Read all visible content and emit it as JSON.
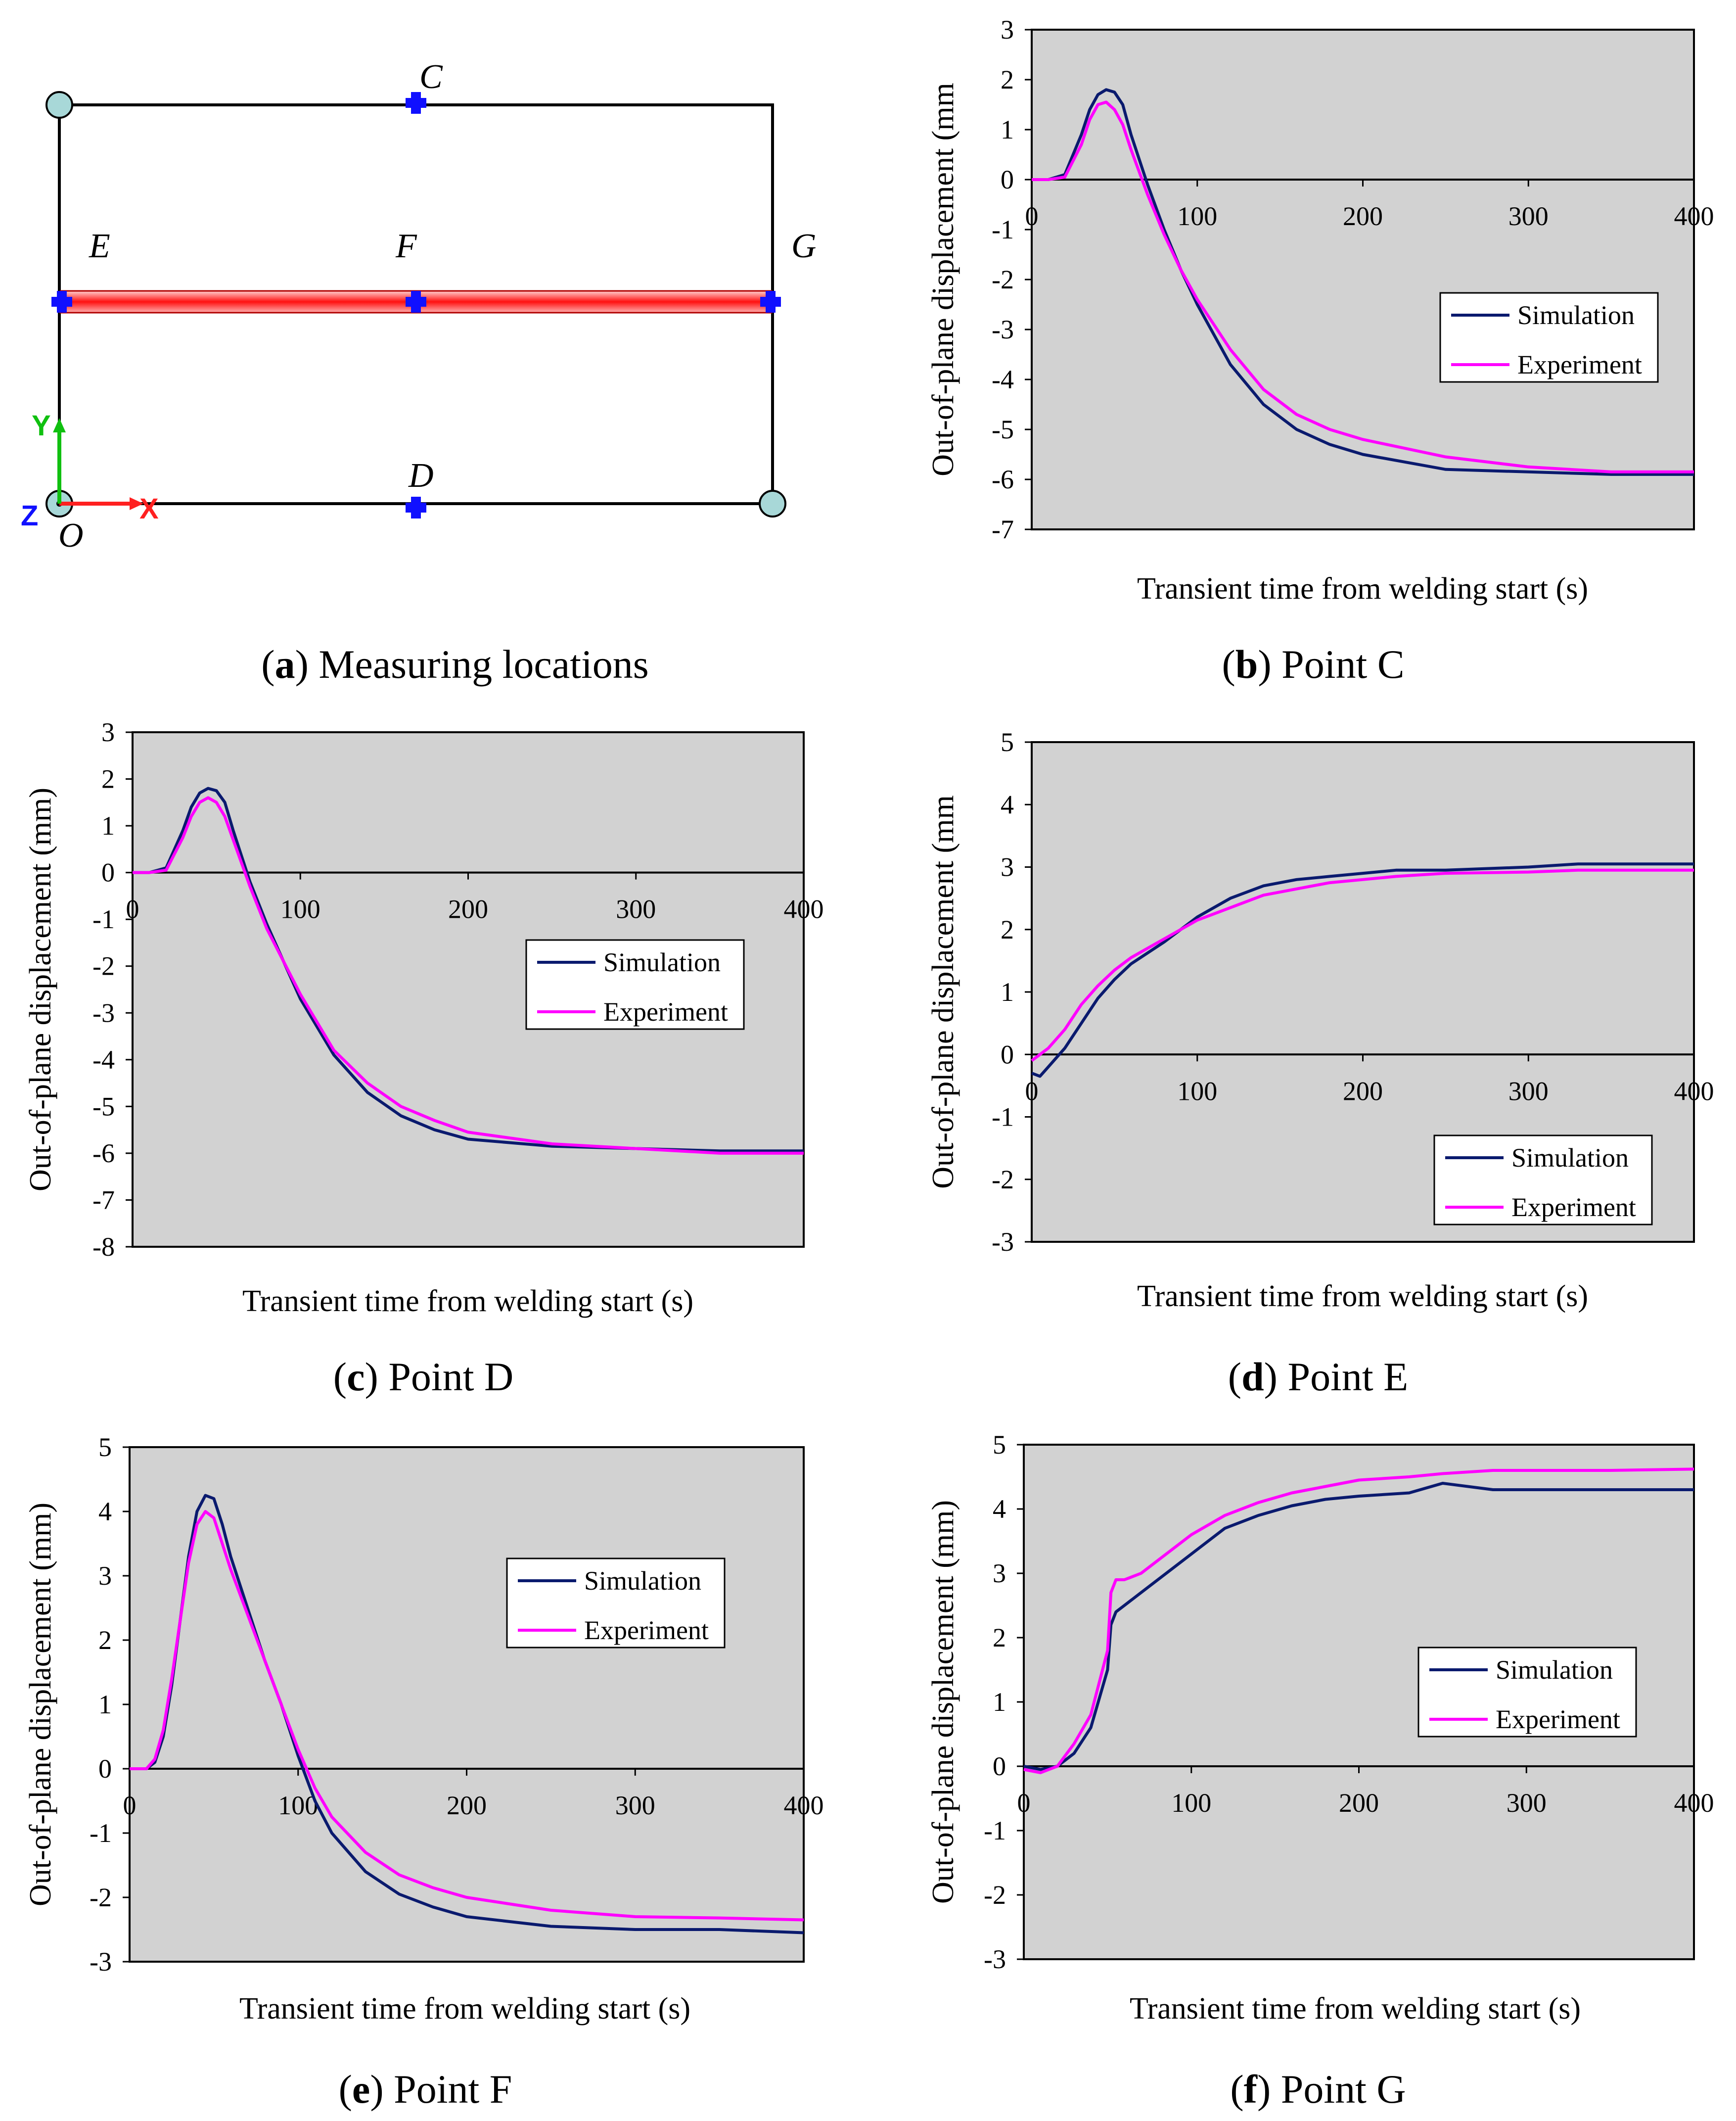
{
  "diagram": {
    "point_labels": {
      "C": "C",
      "D": "D",
      "E": "E",
      "F": "F",
      "G": "G",
      "O": "O"
    },
    "axis_labels": {
      "x": "X",
      "y": "Y",
      "z": "Z"
    },
    "caption": {
      "letter": "a",
      "text": "Measuring locations"
    },
    "colors": {
      "frame": "#000000",
      "weld": "#ff2020",
      "marker": "#1010ff",
      "corner": "#a8d8d8",
      "axis_x": "#ff2020",
      "axis_y": "#10c010",
      "axis_z": "#1010ff"
    }
  },
  "legend_labels": [
    "Simulation",
    "Experiment"
  ],
  "series_colors": {
    "Simulation": "#0a1a6e",
    "Experiment": "#ff00ff"
  },
  "chart_data": [
    {
      "id": "b",
      "type": "line",
      "caption": {
        "letter": "b",
        "text": "Point C"
      },
      "xlabel": "Transient time from welding start (s)",
      "ylabel": "Out-of-plane displacement (mm",
      "xlim": [
        0,
        400
      ],
      "ylim": [
        -7,
        3
      ],
      "xticks": [
        0,
        100,
        200,
        300,
        400
      ],
      "yticks": [
        3,
        2,
        1,
        0,
        -1,
        -2,
        -3,
        -4,
        -5,
        -6,
        -7
      ],
      "series": [
        {
          "name": "Simulation",
          "x": [
            0,
            10,
            20,
            30,
            35,
            40,
            45,
            50,
            55,
            60,
            70,
            80,
            90,
            100,
            120,
            140,
            160,
            180,
            200,
            250,
            300,
            350,
            400
          ],
          "y": [
            0,
            0,
            0.1,
            0.9,
            1.4,
            1.7,
            1.8,
            1.75,
            1.5,
            0.9,
            -0.1,
            -1.0,
            -1.8,
            -2.5,
            -3.7,
            -4.5,
            -5.0,
            -5.3,
            -5.5,
            -5.8,
            -5.85,
            -5.9,
            -5.9
          ]
        },
        {
          "name": "Experiment",
          "x": [
            0,
            10,
            20,
            30,
            35,
            40,
            45,
            50,
            55,
            60,
            70,
            80,
            90,
            100,
            120,
            140,
            160,
            180,
            200,
            250,
            300,
            350,
            400
          ],
          "y": [
            0,
            0,
            0.05,
            0.7,
            1.2,
            1.5,
            1.55,
            1.4,
            1.1,
            0.6,
            -0.3,
            -1.1,
            -1.8,
            -2.4,
            -3.4,
            -4.2,
            -4.7,
            -5.0,
            -5.2,
            -5.55,
            -5.75,
            -5.85,
            -5.85
          ]
        }
      ],
      "legend": "right-middle"
    },
    {
      "id": "c",
      "type": "line",
      "caption": {
        "letter": "c",
        "text": "Point D"
      },
      "xlabel": "Transient time from welding start (s)",
      "ylabel": "Out-of-plane displacement (mm)",
      "xlim": [
        0,
        400
      ],
      "ylim": [
        -8,
        3
      ],
      "xticks": [
        0,
        100,
        200,
        300,
        400
      ],
      "yticks": [
        3,
        2,
        1,
        0,
        -1,
        -2,
        -3,
        -4,
        -5,
        -6,
        -7,
        -8
      ],
      "series": [
        {
          "name": "Simulation",
          "x": [
            0,
            10,
            20,
            30,
            35,
            40,
            45,
            50,
            55,
            60,
            70,
            80,
            90,
            100,
            120,
            140,
            160,
            180,
            200,
            250,
            300,
            350,
            400
          ],
          "y": [
            0,
            0,
            0.1,
            0.9,
            1.4,
            1.7,
            1.8,
            1.75,
            1.5,
            0.9,
            -0.2,
            -1.1,
            -1.9,
            -2.7,
            -3.9,
            -4.7,
            -5.2,
            -5.5,
            -5.7,
            -5.85,
            -5.9,
            -5.95,
            -5.95
          ]
        },
        {
          "name": "Experiment",
          "x": [
            0,
            10,
            20,
            30,
            35,
            40,
            45,
            50,
            55,
            60,
            70,
            80,
            90,
            100,
            120,
            140,
            160,
            180,
            200,
            250,
            300,
            350,
            400
          ],
          "y": [
            0,
            0,
            0.05,
            0.75,
            1.2,
            1.5,
            1.6,
            1.5,
            1.2,
            0.7,
            -0.3,
            -1.2,
            -1.9,
            -2.6,
            -3.8,
            -4.5,
            -5.0,
            -5.3,
            -5.55,
            -5.8,
            -5.9,
            -6.0,
            -6.0
          ]
        }
      ],
      "legend": "right-middle"
    },
    {
      "id": "d",
      "type": "line",
      "caption": {
        "letter": "d",
        "text": "Point E"
      },
      "xlabel": "Transient time from welding start (s)",
      "ylabel": "Out-of-plane displacement (mm",
      "xlim": [
        0,
        400
      ],
      "ylim": [
        -3,
        5
      ],
      "xticks": [
        0,
        100,
        200,
        300,
        400
      ],
      "yticks": [
        5,
        4,
        3,
        2,
        1,
        0,
        -1,
        -2,
        -3
      ],
      "series": [
        {
          "name": "Simulation",
          "x": [
            0,
            5,
            10,
            20,
            30,
            40,
            50,
            60,
            80,
            100,
            120,
            140,
            160,
            180,
            200,
            220,
            250,
            300,
            330,
            400
          ],
          "y": [
            -0.3,
            -0.35,
            -0.2,
            0.1,
            0.5,
            0.9,
            1.2,
            1.45,
            1.8,
            2.2,
            2.5,
            2.7,
            2.8,
            2.85,
            2.9,
            2.95,
            2.95,
            3.0,
            3.05,
            3.05
          ]
        },
        {
          "name": "Experiment",
          "x": [
            0,
            5,
            10,
            20,
            30,
            40,
            50,
            60,
            80,
            100,
            120,
            140,
            160,
            180,
            200,
            220,
            250,
            300,
            330,
            400
          ],
          "y": [
            -0.1,
            0.0,
            0.1,
            0.4,
            0.8,
            1.1,
            1.35,
            1.55,
            1.85,
            2.15,
            2.35,
            2.55,
            2.65,
            2.75,
            2.8,
            2.85,
            2.9,
            2.92,
            2.95,
            2.95
          ]
        }
      ],
      "legend": "bottom-right"
    },
    {
      "id": "e",
      "type": "line",
      "caption": {
        "letter": "e",
        "text": "Point F"
      },
      "xlabel": "Transient time from welding start (s)",
      "ylabel": "Out-of-plane displacement (mm)",
      "xlim": [
        0,
        400
      ],
      "ylim": [
        -3,
        5
      ],
      "xticks": [
        0,
        100,
        200,
        300,
        400
      ],
      "yticks": [
        5,
        4,
        3,
        2,
        1,
        0,
        -1,
        -2,
        -3
      ],
      "series": [
        {
          "name": "Simulation",
          "x": [
            0,
            10,
            15,
            20,
            25,
            30,
            35,
            40,
            45,
            50,
            55,
            60,
            70,
            80,
            90,
            100,
            110,
            120,
            140,
            160,
            180,
            200,
            250,
            300,
            350,
            400
          ],
          "y": [
            0,
            0,
            0.1,
            0.5,
            1.3,
            2.3,
            3.3,
            4.0,
            4.25,
            4.2,
            3.8,
            3.3,
            2.5,
            1.7,
            1.0,
            0.2,
            -0.5,
            -1.0,
            -1.6,
            -1.95,
            -2.15,
            -2.3,
            -2.45,
            -2.5,
            -2.5,
            -2.55
          ]
        },
        {
          "name": "Experiment",
          "x": [
            0,
            10,
            15,
            20,
            25,
            30,
            35,
            40,
            45,
            50,
            55,
            60,
            70,
            80,
            90,
            100,
            110,
            120,
            140,
            160,
            180,
            200,
            250,
            300,
            350,
            400
          ],
          "y": [
            0,
            0,
            0.15,
            0.6,
            1.4,
            2.3,
            3.2,
            3.8,
            4.0,
            3.9,
            3.5,
            3.1,
            2.4,
            1.7,
            1.0,
            0.3,
            -0.3,
            -0.75,
            -1.3,
            -1.65,
            -1.85,
            -2.0,
            -2.2,
            -2.3,
            -2.32,
            -2.35
          ]
        }
      ],
      "legend": "right-upper"
    },
    {
      "id": "f",
      "type": "line",
      "caption": {
        "letter": "f",
        "text": "Point G"
      },
      "xlabel": "Transient time from welding start (s)",
      "ylabel": "Out-of-plane displacement (mm)",
      "xlim": [
        0,
        400
      ],
      "ylim": [
        -3,
        5
      ],
      "xticks": [
        0,
        100,
        200,
        300,
        400
      ],
      "yticks": [
        5,
        4,
        3,
        2,
        1,
        0,
        -1,
        -2,
        -3
      ],
      "series": [
        {
          "name": "Simulation",
          "x": [
            0,
            10,
            20,
            30,
            40,
            50,
            52,
            55,
            60,
            70,
            80,
            100,
            120,
            140,
            160,
            180,
            200,
            230,
            250,
            280,
            300,
            350,
            400
          ],
          "y": [
            0,
            -0.05,
            0,
            0.2,
            0.6,
            1.5,
            2.2,
            2.4,
            2.5,
            2.7,
            2.9,
            3.3,
            3.7,
            3.9,
            4.05,
            4.15,
            4.2,
            4.25,
            4.4,
            4.3,
            4.3,
            4.3,
            4.3
          ]
        },
        {
          "name": "Experiment",
          "x": [
            0,
            10,
            20,
            30,
            40,
            50,
            52,
            55,
            60,
            70,
            80,
            100,
            120,
            140,
            160,
            180,
            200,
            230,
            250,
            280,
            300,
            350,
            400
          ],
          "y": [
            -0.05,
            -0.1,
            0,
            0.35,
            0.8,
            1.8,
            2.7,
            2.9,
            2.9,
            3.0,
            3.2,
            3.6,
            3.9,
            4.1,
            4.25,
            4.35,
            4.45,
            4.5,
            4.55,
            4.6,
            4.6,
            4.6,
            4.62
          ]
        }
      ],
      "legend": "bottom-right"
    }
  ]
}
